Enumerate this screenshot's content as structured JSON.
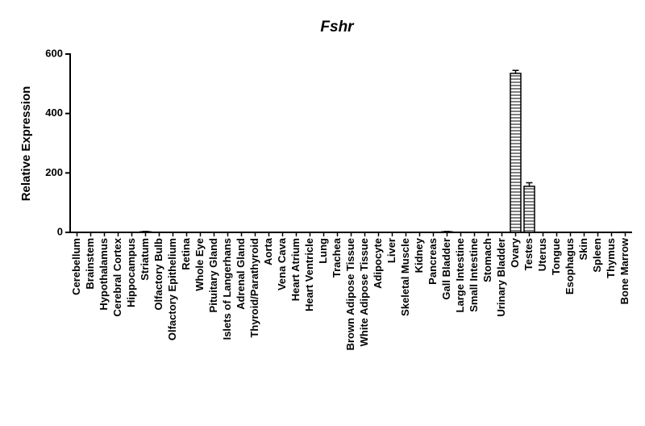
{
  "chart_data": {
    "type": "bar",
    "title": "Fshr",
    "y_label": "Relative Expression",
    "categories": [
      "Cerebellum",
      "Brainstem",
      "Hypothalamus",
      "Cerebral Cortex",
      "Hippocampus",
      "Striatum",
      "Olfactory Bulb",
      "Olfactory Epithelium",
      "Retina",
      "Whole Eye",
      "Pituitary Gland",
      "Islets of Langerhans",
      "Adrenal Gland",
      "Thyroid/Parathyroid",
      "Aorta",
      "Vena Cava",
      "Heart Atrium",
      "Heart Ventricle",
      "Lung",
      "Trachea",
      "Brown Adipose Tissue",
      "White Adipose Tissue",
      "Adipocyte",
      "Liver",
      "Skeletal Muscle",
      "Kidney",
      "Pancreas",
      "Gall Bladder",
      "Large Intestine",
      "Small Intestine",
      "Stomach",
      "Urinary Bladder",
      "Ovary",
      "Testes",
      "Uterus",
      "Tongue",
      "Esophagus",
      "Skin",
      "Spleen",
      "Thymus",
      "Bone Marrow"
    ],
    "values": [
      0,
      0,
      0,
      0,
      0,
      2,
      0,
      0,
      0,
      0,
      0,
      0,
      0,
      0,
      0,
      0,
      0,
      0,
      0,
      0,
      0,
      0,
      0,
      0,
      0,
      0,
      0,
      2,
      0,
      0,
      0,
      0,
      535,
      155,
      0,
      0,
      0,
      0,
      0,
      0,
      1
    ],
    "errors": [
      0,
      0,
      0,
      0,
      0,
      1,
      0,
      0,
      0,
      0,
      0,
      0,
      0,
      0,
      0,
      0,
      0,
      0,
      0,
      0,
      0,
      0,
      0,
      0,
      0,
      0,
      0,
      1,
      0,
      0,
      0,
      0,
      10,
      12,
      0,
      0,
      0,
      0,
      0,
      0,
      0
    ],
    "color": "#000000",
    "ylim": [
      0,
      600
    ],
    "yticks": [
      0,
      200,
      400,
      600
    ],
    "grid": false
  }
}
